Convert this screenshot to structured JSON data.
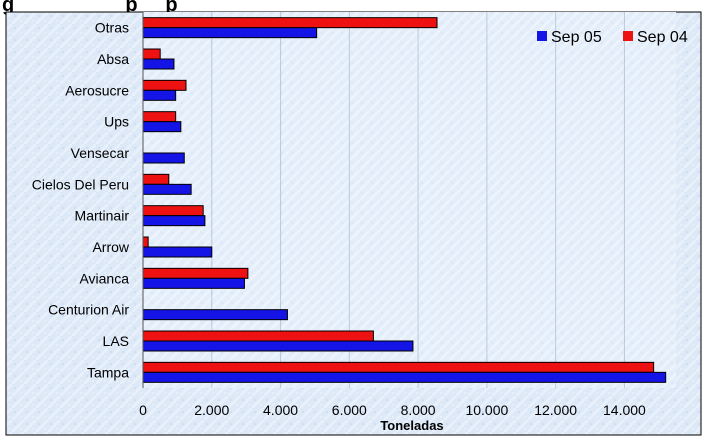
{
  "chart_data": {
    "type": "bar",
    "orientation": "horizontal",
    "title_visible_fragment": "g                    p     p",
    "xlabel": "Toneladas",
    "ylabel": "",
    "xlim": [
      0,
      15500
    ],
    "x_ticks": [
      0,
      2000,
      4000,
      6000,
      8000,
      10000,
      12000,
      14000
    ],
    "x_tick_labels": [
      "0",
      "2.000",
      "4.000",
      "6.000",
      "8.000",
      "10.000",
      "12.000",
      "14.000"
    ],
    "grid": true,
    "legend_position": "top-right",
    "categories": [
      "Otras",
      "Absa",
      "Aerosucre",
      "Ups",
      "Vensecar",
      "Cielos Del Peru",
      "Martinair",
      "Arrow",
      "Avianca",
      "Centurion Air",
      "LAS",
      "Tampa"
    ],
    "series": [
      {
        "name": "Sep 05",
        "color": "#1414e6",
        "values": [
          5050,
          900,
          950,
          1100,
          1200,
          1400,
          1800,
          2000,
          2950,
          4200,
          7850,
          15200
        ]
      },
      {
        "name": "Sep 04",
        "color": "#ee1111",
        "values": [
          8550,
          500,
          1250,
          950,
          0,
          750,
          1750,
          150,
          3050,
          0,
          6700,
          14850
        ]
      }
    ]
  }
}
